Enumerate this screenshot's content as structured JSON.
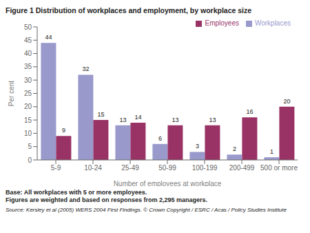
{
  "chart_data": {
    "type": "bar",
    "title": "Figure 1 Distribution of workplaces and employment, by workplace size",
    "categories": [
      "5-9",
      "10-24",
      "25-49",
      "50-99",
      "100-199",
      "200-499",
      "500 or more"
    ],
    "series": [
      {
        "name": "Workplaces",
        "color": "#9999cc",
        "values": [
          44,
          32,
          13,
          6,
          3,
          2,
          1
        ]
      },
      {
        "name": "Employees",
        "color": "#993366",
        "values": [
          9,
          15,
          14,
          13,
          13,
          16,
          20
        ]
      }
    ],
    "xlabel": "Number of employees at workplace",
    "ylabel": "Per cent",
    "ylim": [
      0,
      50
    ],
    "yticks": [
      0,
      5,
      10,
      15,
      20,
      25,
      30,
      35,
      40,
      45,
      50
    ],
    "legend": "upper right",
    "data_labels": true,
    "grid": false,
    "annotations": [
      "Base: All workplaces with 5 or more employees.\nFigures are weighted and based on responses from 2,295 managers.",
      "Source: Kersley et al (2005) WERS 2004 First Findings. © Crown Copyright / ESRC / Acas / Policy Studies Institute"
    ]
  }
}
